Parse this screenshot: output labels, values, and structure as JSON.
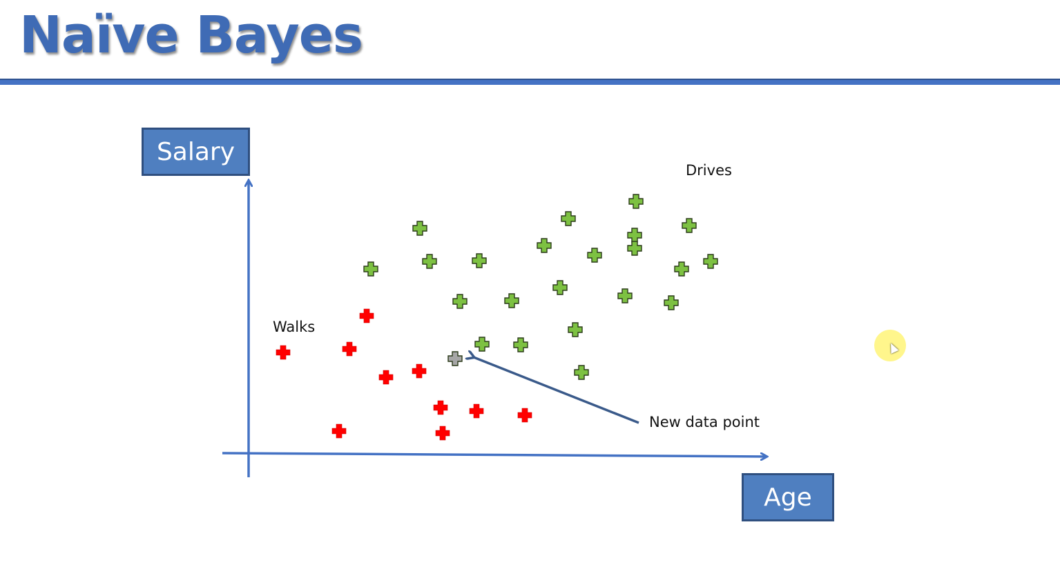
{
  "slide": {
    "title": "Naïve Bayes"
  },
  "chart_data": {
    "type": "scatter",
    "xlabel": "Age",
    "ylabel": "Salary",
    "series": [
      {
        "name": "Walks",
        "color": "#ff0000",
        "points": [
          [
            50,
            147
          ],
          [
            146,
            152
          ],
          [
            171,
            200
          ],
          [
            199,
            111
          ],
          [
            247,
            120
          ],
          [
            278,
            67
          ],
          [
            281,
            30
          ],
          [
            330,
            62
          ],
          [
            400,
            56
          ],
          [
            131,
            33
          ]
        ]
      },
      {
        "name": "Drives",
        "color": "#7dc142",
        "points": [
          [
            248,
            327
          ],
          [
            177,
            268
          ],
          [
            262,
            279
          ],
          [
            334,
            280
          ],
          [
            306,
            221
          ],
          [
            381,
            222
          ],
          [
            428,
            302
          ],
          [
            463,
            341
          ],
          [
            501,
            288
          ],
          [
            559,
            317
          ],
          [
            451,
            241
          ],
          [
            545,
            229
          ],
          [
            612,
            219
          ],
          [
            338,
            159
          ],
          [
            394,
            158
          ],
          [
            473,
            180
          ],
          [
            482,
            118
          ],
          [
            559,
            298
          ],
          [
            627,
            268
          ],
          [
            638,
            331
          ],
          [
            669,
            279
          ],
          [
            561,
            366
          ]
        ]
      },
      {
        "name": "New data point",
        "color": "#a6a6a6",
        "points": [
          [
            299,
            138
          ]
        ]
      }
    ],
    "annotations": [
      "Walks",
      "Drives",
      "New data point"
    ]
  }
}
